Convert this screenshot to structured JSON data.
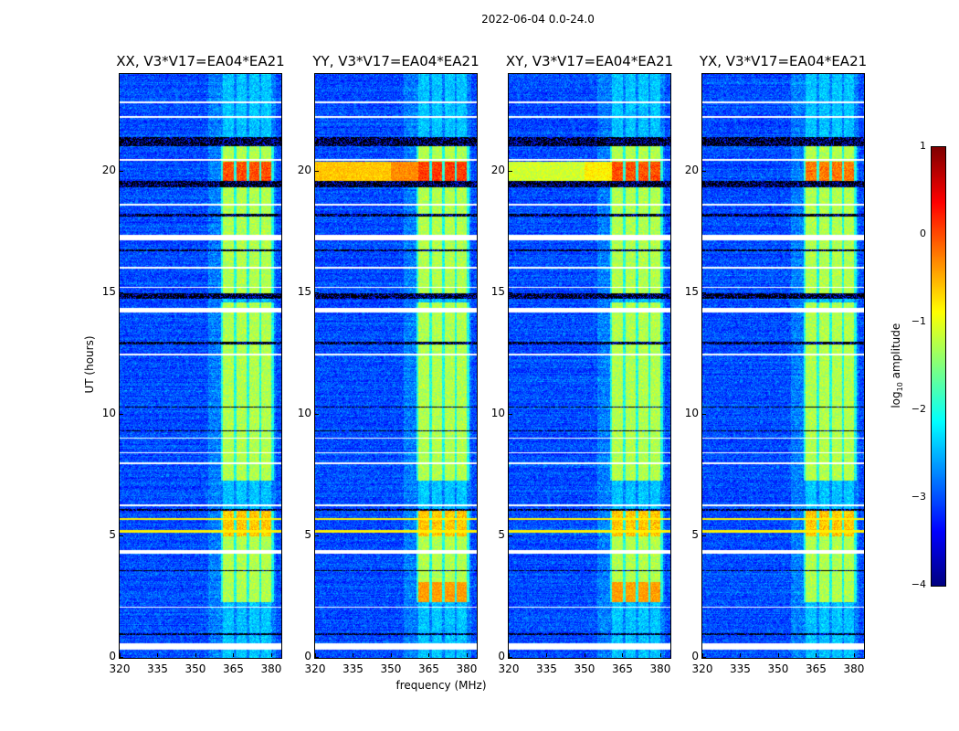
{
  "chart_data": {
    "type": "heatmap",
    "title": "2022-06-04 0.0-24.0",
    "xlabel": "frequency (MHz)",
    "ylabel": "UT (hours)",
    "xlim": [
      320,
      384
    ],
    "ylim": [
      0,
      24
    ],
    "xticks": [
      320,
      335,
      350,
      365,
      380
    ],
    "yticks": [
      0,
      5,
      10,
      15,
      20
    ],
    "panels": [
      {
        "id": "XX",
        "title": "XX, V3*V17=EA04*EA21",
        "broadband_event": 0.0,
        "rfi_peak": 0.3
      },
      {
        "id": "YY",
        "title": "YY, V3*V17=EA04*EA21",
        "broadband_event": -0.6,
        "rfi_peak": 0.4
      },
      {
        "id": "XY",
        "title": "XY, V3*V17=EA04*EA21",
        "broadband_event": -1.1,
        "rfi_peak": 0.3
      },
      {
        "id": "YX",
        "title": "YX, V3*V17=EA04*EA21",
        "broadband_event": 0.0,
        "rfi_peak": 0.1
      }
    ],
    "colorbar": {
      "label_main": "log",
      "label_sub": "10",
      "label_rest": " amplitude",
      "range": [
        -4,
        1
      ],
      "ticks": [
        "1",
        "0",
        "−1",
        "−2",
        "−3",
        "−4"
      ],
      "tick_values": [
        1,
        0,
        -1,
        -2,
        -3,
        -4
      ],
      "colormap": "jet"
    },
    "rfi_channels_mhz": [
      [
        361,
        365.3
      ],
      [
        366.2,
        370.4
      ],
      [
        371.2,
        375.4
      ],
      [
        376.2,
        380.2
      ]
    ],
    "rfi_active_hours": [
      [
        2.3,
        6.1
      ],
      [
        7.3,
        14.6
      ],
      [
        15.0,
        21.1
      ]
    ],
    "flagged_hours": [
      [
        0.35,
        0.6
      ],
      [
        2.05,
        2.12
      ],
      [
        4.3,
        4.42
      ],
      [
        6.25,
        6.32
      ],
      [
        7.95,
        8.02
      ],
      [
        8.4,
        8.46
      ],
      [
        9.0,
        9.06
      ],
      [
        12.45,
        12.5
      ],
      [
        14.2,
        14.4
      ],
      [
        15.2,
        15.26
      ],
      [
        16.0,
        16.06
      ],
      [
        17.15,
        17.4
      ],
      [
        18.6,
        18.65
      ],
      [
        20.45,
        20.5
      ],
      [
        22.2,
        22.26
      ],
      [
        22.8,
        22.86
      ]
    ],
    "dropout_hours": [
      [
        0.95,
        1.02
      ],
      [
        3.55,
        3.62
      ],
      [
        6.05,
        6.12
      ],
      [
        9.3,
        9.36
      ],
      [
        10.3,
        10.33
      ],
      [
        12.9,
        12.98
      ],
      [
        14.75,
        15.0
      ],
      [
        16.7,
        16.78
      ],
      [
        18.15,
        18.25
      ],
      [
        19.35,
        19.6
      ],
      [
        21.05,
        21.4
      ]
    ],
    "bright_hours": [
      [
        19.6,
        20.4
      ]
    ],
    "line_hours": [
      5.2,
      5.7
    ]
  }
}
